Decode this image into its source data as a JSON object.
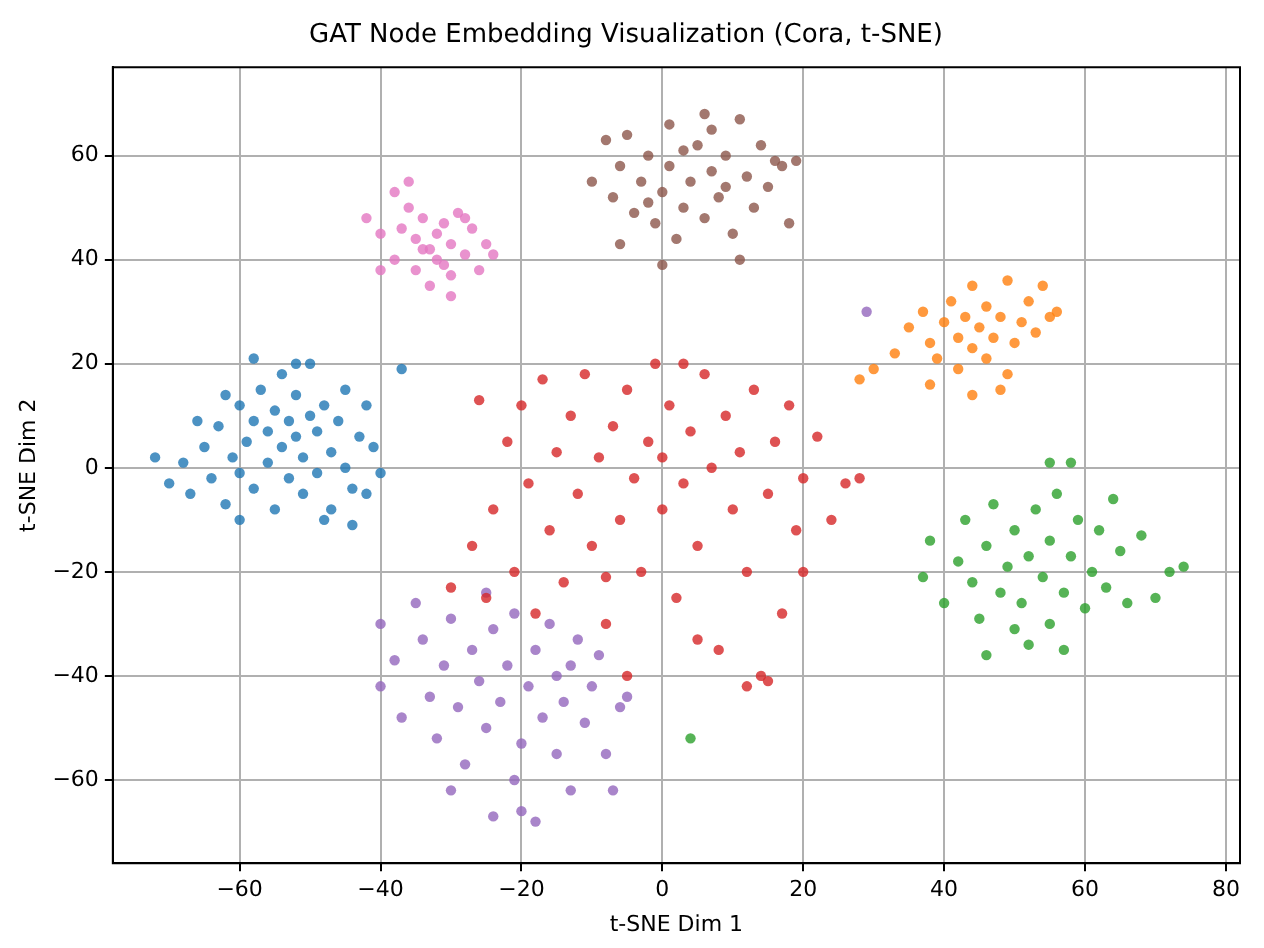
{
  "chart_data": {
    "type": "scatter",
    "title": "GAT Node Embedding Visualization (Cora, t-SNE)",
    "xlabel": "t-SNE Dim 1",
    "ylabel": "t-SNE Dim 2",
    "xlim": [
      -78,
      82
    ],
    "ylim": [
      -76,
      77
    ],
    "xticks": [
      -60,
      -40,
      -20,
      0,
      20,
      40,
      60,
      80
    ],
    "yticks": [
      -60,
      -40,
      -20,
      0,
      20,
      40,
      60
    ],
    "grid": true,
    "legend": false,
    "marker": "circle",
    "series": [
      {
        "color": "#1f77b4",
        "x": [
          -72,
          -70,
          -68,
          -67,
          -65,
          -64,
          -63,
          -62,
          -61,
          -60,
          -60,
          -59,
          -58,
          -58,
          -57,
          -56,
          -56,
          -55,
          -55,
          -54,
          -54,
          -53,
          -53,
          -52,
          -52,
          -51,
          -51,
          -50,
          -50,
          -49,
          -49,
          -48,
          -47,
          -47,
          -46,
          -45,
          -45,
          -44,
          -44,
          -43,
          -42,
          -41,
          -40,
          -48,
          -62,
          -66,
          -58,
          -52,
          -42,
          -37,
          -60
        ],
        "values": [
          2,
          -3,
          1,
          -5,
          4,
          -2,
          8,
          -7,
          2,
          -1,
          12,
          5,
          -4,
          9,
          15,
          1,
          7,
          -8,
          11,
          4,
          18,
          -2,
          9,
          6,
          14,
          -5,
          2,
          10,
          20,
          -1,
          7,
          12,
          3,
          -8,
          9,
          0,
          15,
          -4,
          -11,
          6,
          12,
          4,
          -1,
          -10,
          14,
          9,
          21,
          20,
          -5,
          19,
          -10
        ]
      },
      {
        "color": "#ff7f0e",
        "x": [
          28,
          30,
          33,
          35,
          37,
          38,
          39,
          40,
          41,
          42,
          42,
          43,
          44,
          44,
          45,
          46,
          46,
          47,
          48,
          49,
          49,
          50,
          51,
          52,
          53,
          54,
          55,
          56,
          44,
          48,
          38
        ],
        "values": [
          17,
          19,
          22,
          27,
          30,
          24,
          21,
          28,
          32,
          25,
          19,
          29,
          23,
          35,
          27,
          31,
          21,
          25,
          29,
          36,
          18,
          24,
          28,
          32,
          26,
          35,
          29,
          30,
          14,
          15,
          16
        ]
      },
      {
        "color": "#2ca02c",
        "x": [
          37,
          38,
          40,
          42,
          43,
          44,
          45,
          46,
          47,
          48,
          49,
          50,
          50,
          51,
          52,
          53,
          54,
          55,
          55,
          56,
          57,
          57,
          58,
          59,
          60,
          61,
          62,
          63,
          64,
          65,
          66,
          68,
          70,
          72,
          74,
          55,
          58,
          46,
          52,
          4
        ],
        "values": [
          -21,
          -14,
          -26,
          -18,
          -10,
          -22,
          -29,
          -15,
          -7,
          -24,
          -19,
          -12,
          -31,
          -26,
          -17,
          -8,
          -21,
          -30,
          -14,
          -5,
          -24,
          -35,
          -17,
          -10,
          -27,
          -20,
          -12,
          -23,
          -6,
          -16,
          -26,
          -13,
          -25,
          -20,
          -19,
          1,
          1,
          -36,
          -34,
          -52
        ]
      },
      {
        "color": "#d62728",
        "x": [
          -27,
          -25,
          -24,
          -22,
          -21,
          -20,
          -19,
          -18,
          -17,
          -16,
          -15,
          -14,
          -13,
          -12,
          -11,
          -10,
          -9,
          -8,
          -7,
          -6,
          -5,
          -4,
          -3,
          -2,
          -1,
          0,
          0,
          1,
          2,
          3,
          4,
          5,
          6,
          7,
          8,
          9,
          10,
          11,
          12,
          13,
          14,
          15,
          16,
          17,
          18,
          19,
          20,
          22,
          24,
          26,
          28,
          12,
          15,
          -5,
          -30,
          -26,
          3,
          -8,
          5,
          20
        ],
        "values": [
          -15,
          -25,
          -8,
          5,
          -20,
          12,
          -3,
          -28,
          17,
          -12,
          3,
          -22,
          10,
          -5,
          18,
          -15,
          2,
          -30,
          8,
          -10,
          15,
          -2,
          -20,
          5,
          20,
          -8,
          2,
          12,
          -25,
          -3,
          7,
          -15,
          18,
          0,
          -35,
          10,
          -8,
          3,
          -20,
          15,
          -40,
          -5,
          5,
          -28,
          12,
          -12,
          -2,
          6,
          -10,
          -3,
          -2,
          -42,
          -41,
          -40,
          -23,
          13,
          20,
          -21,
          -33,
          -20
        ]
      },
      {
        "color": "#9467bd",
        "x": [
          -40,
          -40,
          -38,
          -37,
          -35,
          -34,
          -33,
          -32,
          -31,
          -30,
          -29,
          -28,
          -27,
          -26,
          -25,
          -25,
          -24,
          -23,
          -22,
          -21,
          -21,
          -20,
          -20,
          -19,
          -18,
          -18,
          -17,
          -16,
          -15,
          -15,
          -14,
          -13,
          -12,
          -11,
          -10,
          -9,
          -8,
          -7,
          -5,
          -6,
          -30,
          -24,
          29,
          -13
        ],
        "values": [
          -30,
          -42,
          -37,
          -48,
          -26,
          -33,
          -44,
          -52,
          -38,
          -29,
          -46,
          -57,
          -35,
          -41,
          -24,
          -50,
          -31,
          -45,
          -38,
          -60,
          -28,
          -53,
          -66,
          -42,
          -35,
          -68,
          -48,
          -30,
          -40,
          -55,
          -45,
          -38,
          -33,
          -49,
          -42,
          -36,
          -55,
          -62,
          -44,
          -46,
          -62,
          -67,
          30,
          -62
        ]
      },
      {
        "color": "#8c564b",
        "x": [
          -10,
          -8,
          -7,
          -6,
          -5,
          -4,
          -3,
          -2,
          -1,
          0,
          1,
          1,
          2,
          3,
          4,
          5,
          6,
          6,
          7,
          8,
          9,
          10,
          11,
          12,
          13,
          14,
          15,
          16,
          17,
          18,
          11,
          -6,
          0,
          19,
          9,
          3,
          -2,
          7
        ],
        "values": [
          55,
          63,
          52,
          58,
          64,
          49,
          55,
          60,
          47,
          53,
          66,
          58,
          44,
          50,
          55,
          62,
          48,
          68,
          57,
          52,
          60,
          45,
          67,
          56,
          50,
          62,
          54,
          59,
          58,
          47,
          40,
          43,
          39,
          59,
          54,
          61,
          51,
          65
        ]
      },
      {
        "color": "#e377c2",
        "x": [
          -42,
          -40,
          -38,
          -38,
          -37,
          -36,
          -35,
          -35,
          -34,
          -33,
          -33,
          -32,
          -32,
          -31,
          -30,
          -30,
          -29,
          -28,
          -27,
          -26,
          -25,
          -24,
          -36,
          -30,
          -40,
          -34,
          -28,
          -31
        ],
        "values": [
          48,
          45,
          53,
          40,
          46,
          50,
          38,
          44,
          48,
          35,
          42,
          45,
          40,
          47,
          43,
          37,
          49,
          41,
          46,
          38,
          43,
          41,
          55,
          33,
          38,
          42,
          48,
          39
        ]
      }
    ]
  }
}
